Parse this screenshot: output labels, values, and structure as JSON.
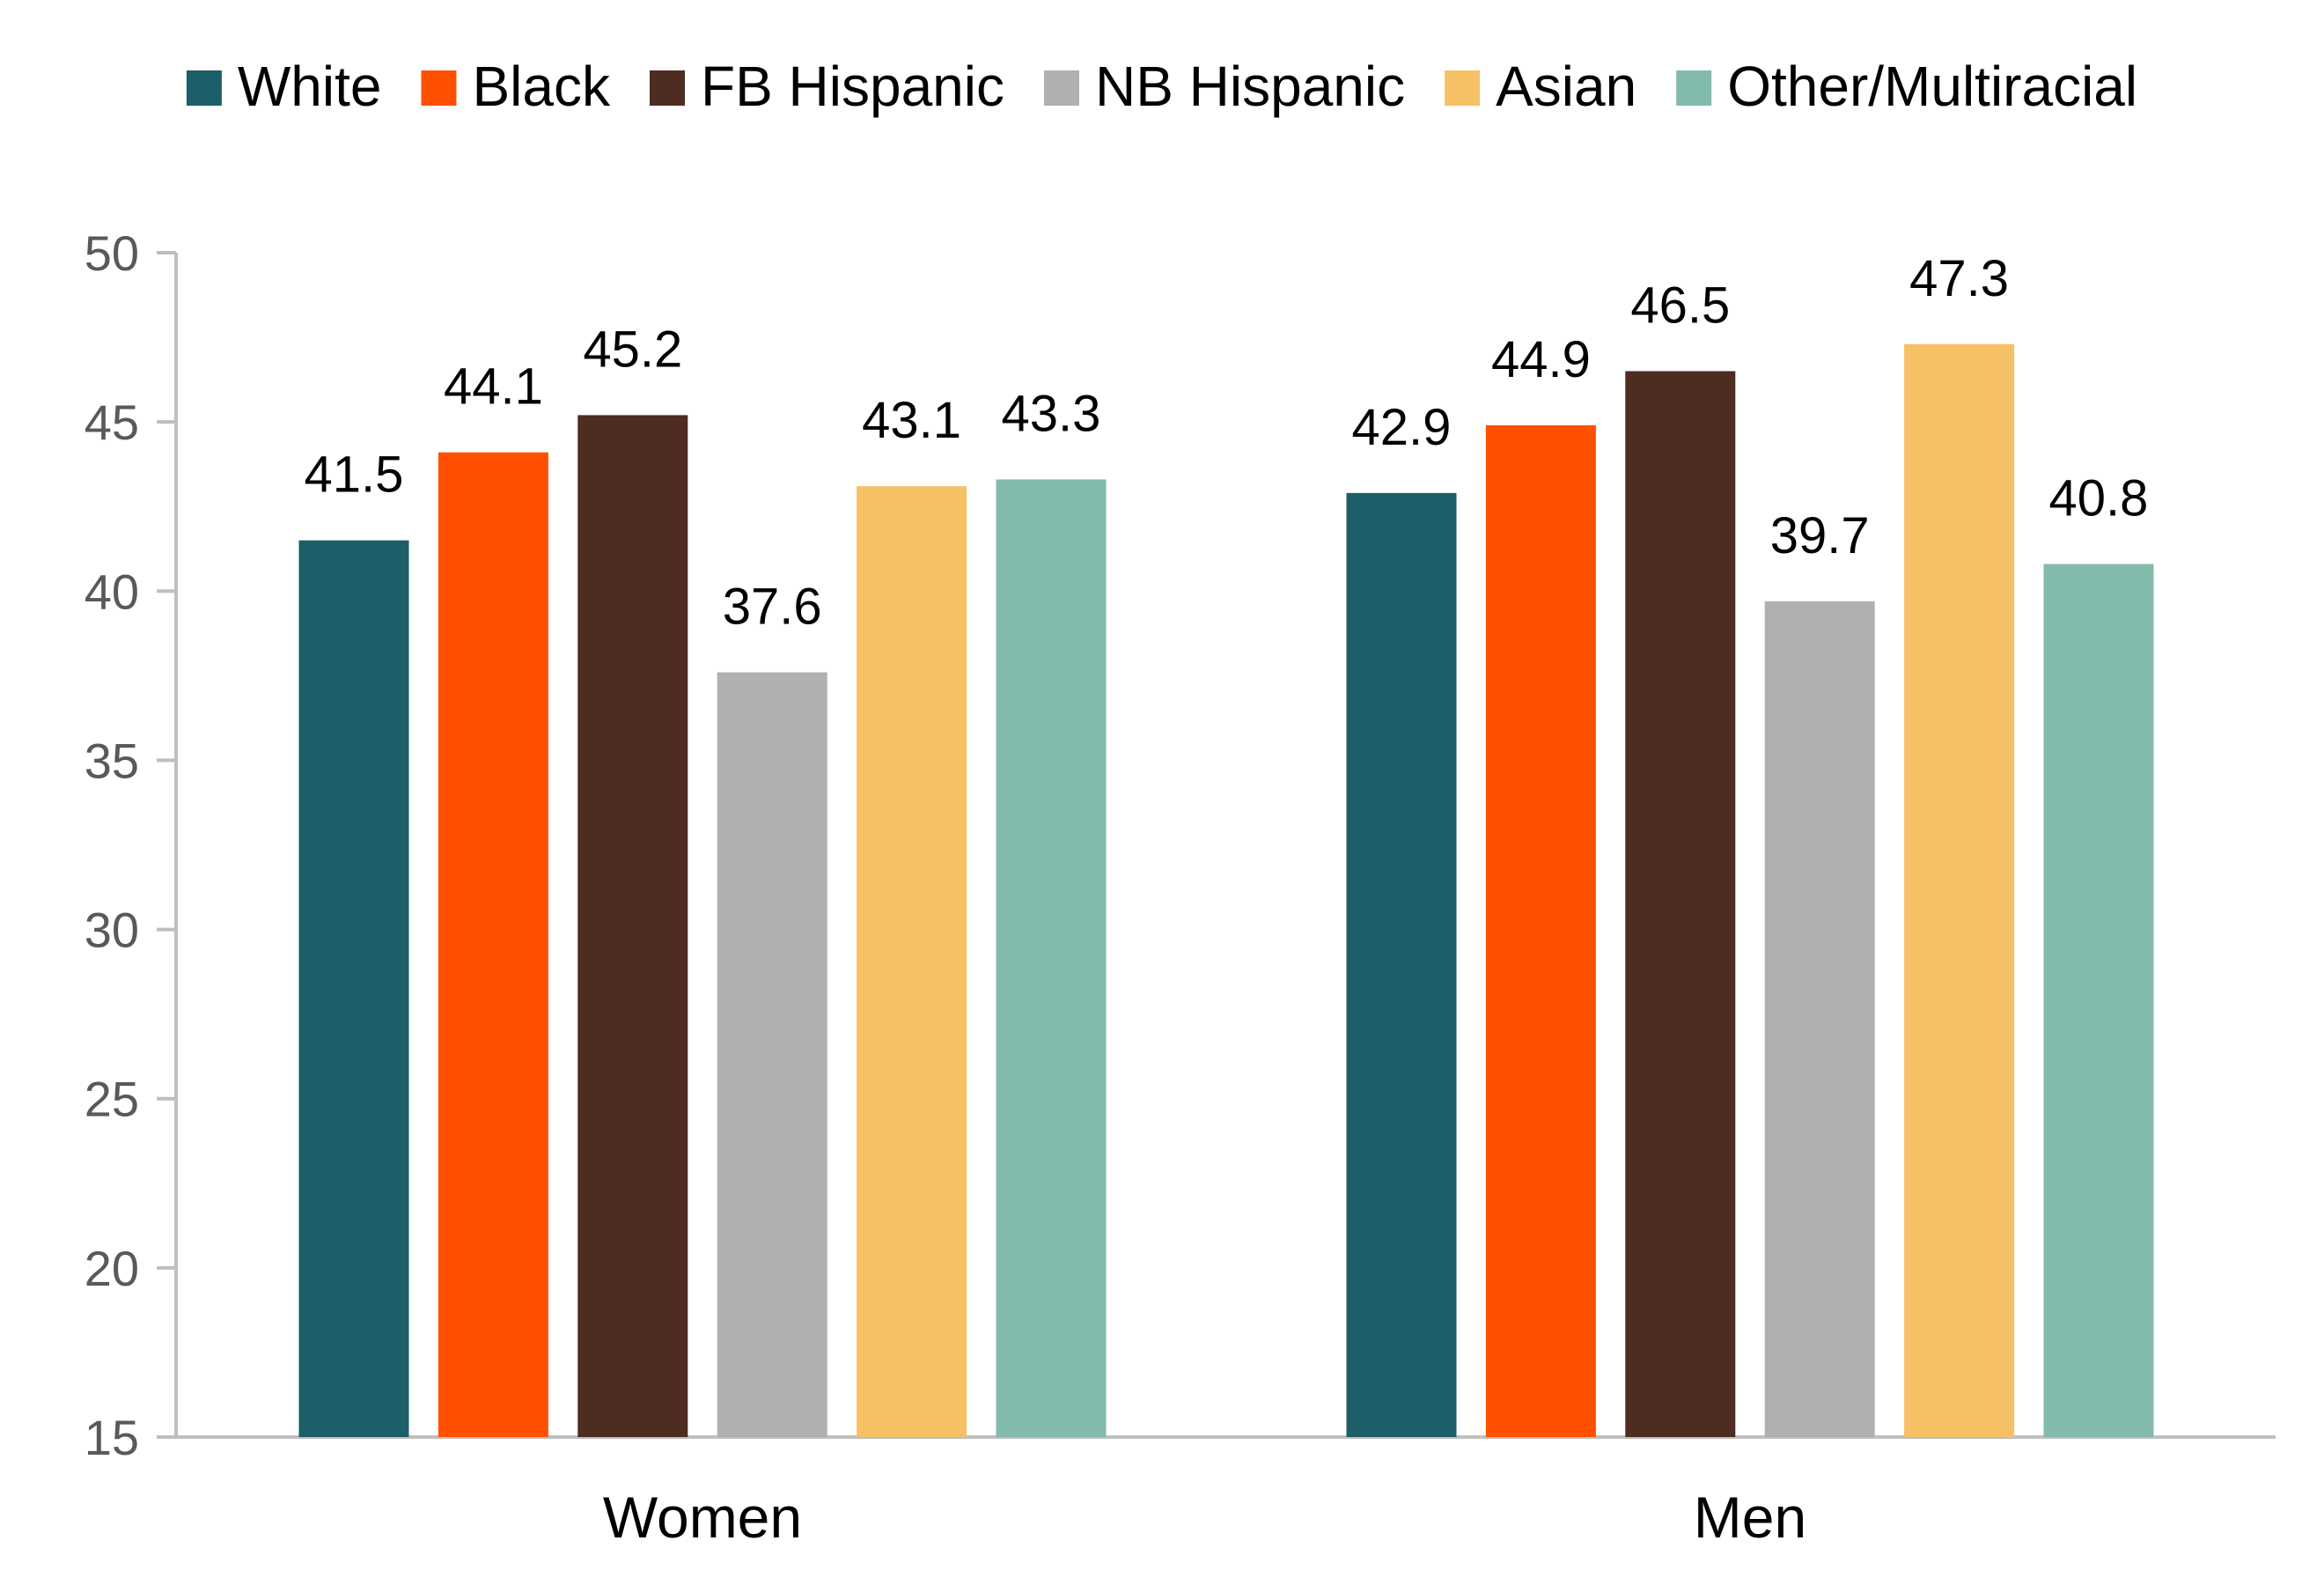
{
  "chart_data": {
    "type": "bar",
    "title": "",
    "xlabel": "",
    "ylabel": "",
    "categories": [
      "Women",
      "Men"
    ],
    "series": [
      {
        "name": "White",
        "color": "#1D5F69",
        "values": [
          41.5,
          42.9
        ]
      },
      {
        "name": "Black",
        "color": "#FF5000",
        "values": [
          44.1,
          44.9
        ]
      },
      {
        "name": "FB Hispanic",
        "color": "#4E2C21",
        "values": [
          45.2,
          46.5
        ]
      },
      {
        "name": "NB Hispanic",
        "color": "#B0B0B0",
        "values": [
          37.6,
          39.7
        ]
      },
      {
        "name": "Asian",
        "color": "#F5C164",
        "values": [
          43.1,
          47.3
        ]
      },
      {
        "name": "Other/Multiracial",
        "color": "#82BAAC",
        "values": [
          43.3,
          40.8
        ]
      }
    ],
    "ylim": [
      15,
      50
    ],
    "yticks": [
      15,
      20,
      25,
      30,
      35,
      40,
      45,
      50
    ],
    "grid": false,
    "legend_position": "top",
    "value_format": "one-decimal"
  }
}
